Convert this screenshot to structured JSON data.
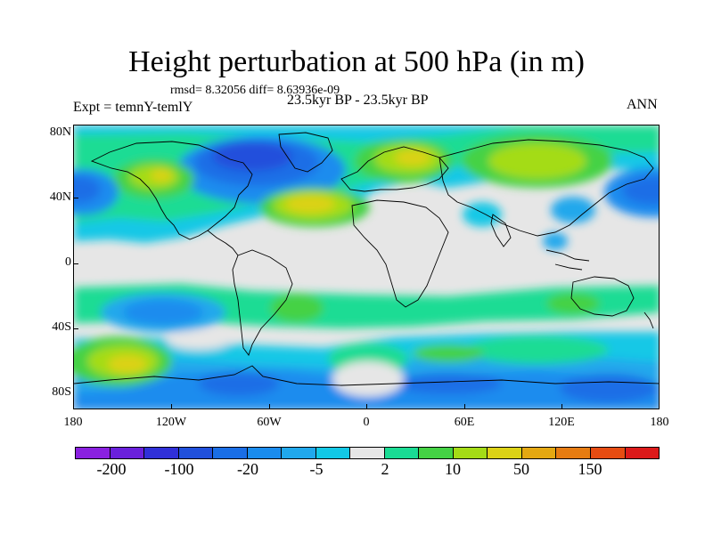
{
  "title": "Height perturbation at 500 hPa (in m)",
  "stats": "rmsd= 8.32056 diff= 8.63936e-09",
  "experiment": "Expt = temnY-temlY",
  "subtitle": "23.5kyr BP - 23.5kyr BP",
  "season": "ANN",
  "lat_labels": [
    "80N",
    "40N",
    "0",
    "40S",
    "80S"
  ],
  "lon_labels": [
    "180",
    "120W",
    "60W",
    "0",
    "60E",
    "120E",
    "180"
  ],
  "colorbar": {
    "colors": [
      "#8a20e0",
      "#6a20dc",
      "#3030d8",
      "#2050dc",
      "#1a6ee6",
      "#1a8cee",
      "#20a8ec",
      "#12c8e6",
      "#e6e6e6",
      "#1adc94",
      "#44d244",
      "#a4dc16",
      "#dcd216",
      "#e4a812",
      "#e67c12",
      "#e64c12",
      "#dc1a1a"
    ],
    "labels": [
      "-200",
      "-100",
      "-20",
      "-5",
      "2",
      "10",
      "50",
      "150"
    ]
  },
  "map": {
    "background_color": "#e6e6e6",
    "land_outline": "coastlines"
  }
}
